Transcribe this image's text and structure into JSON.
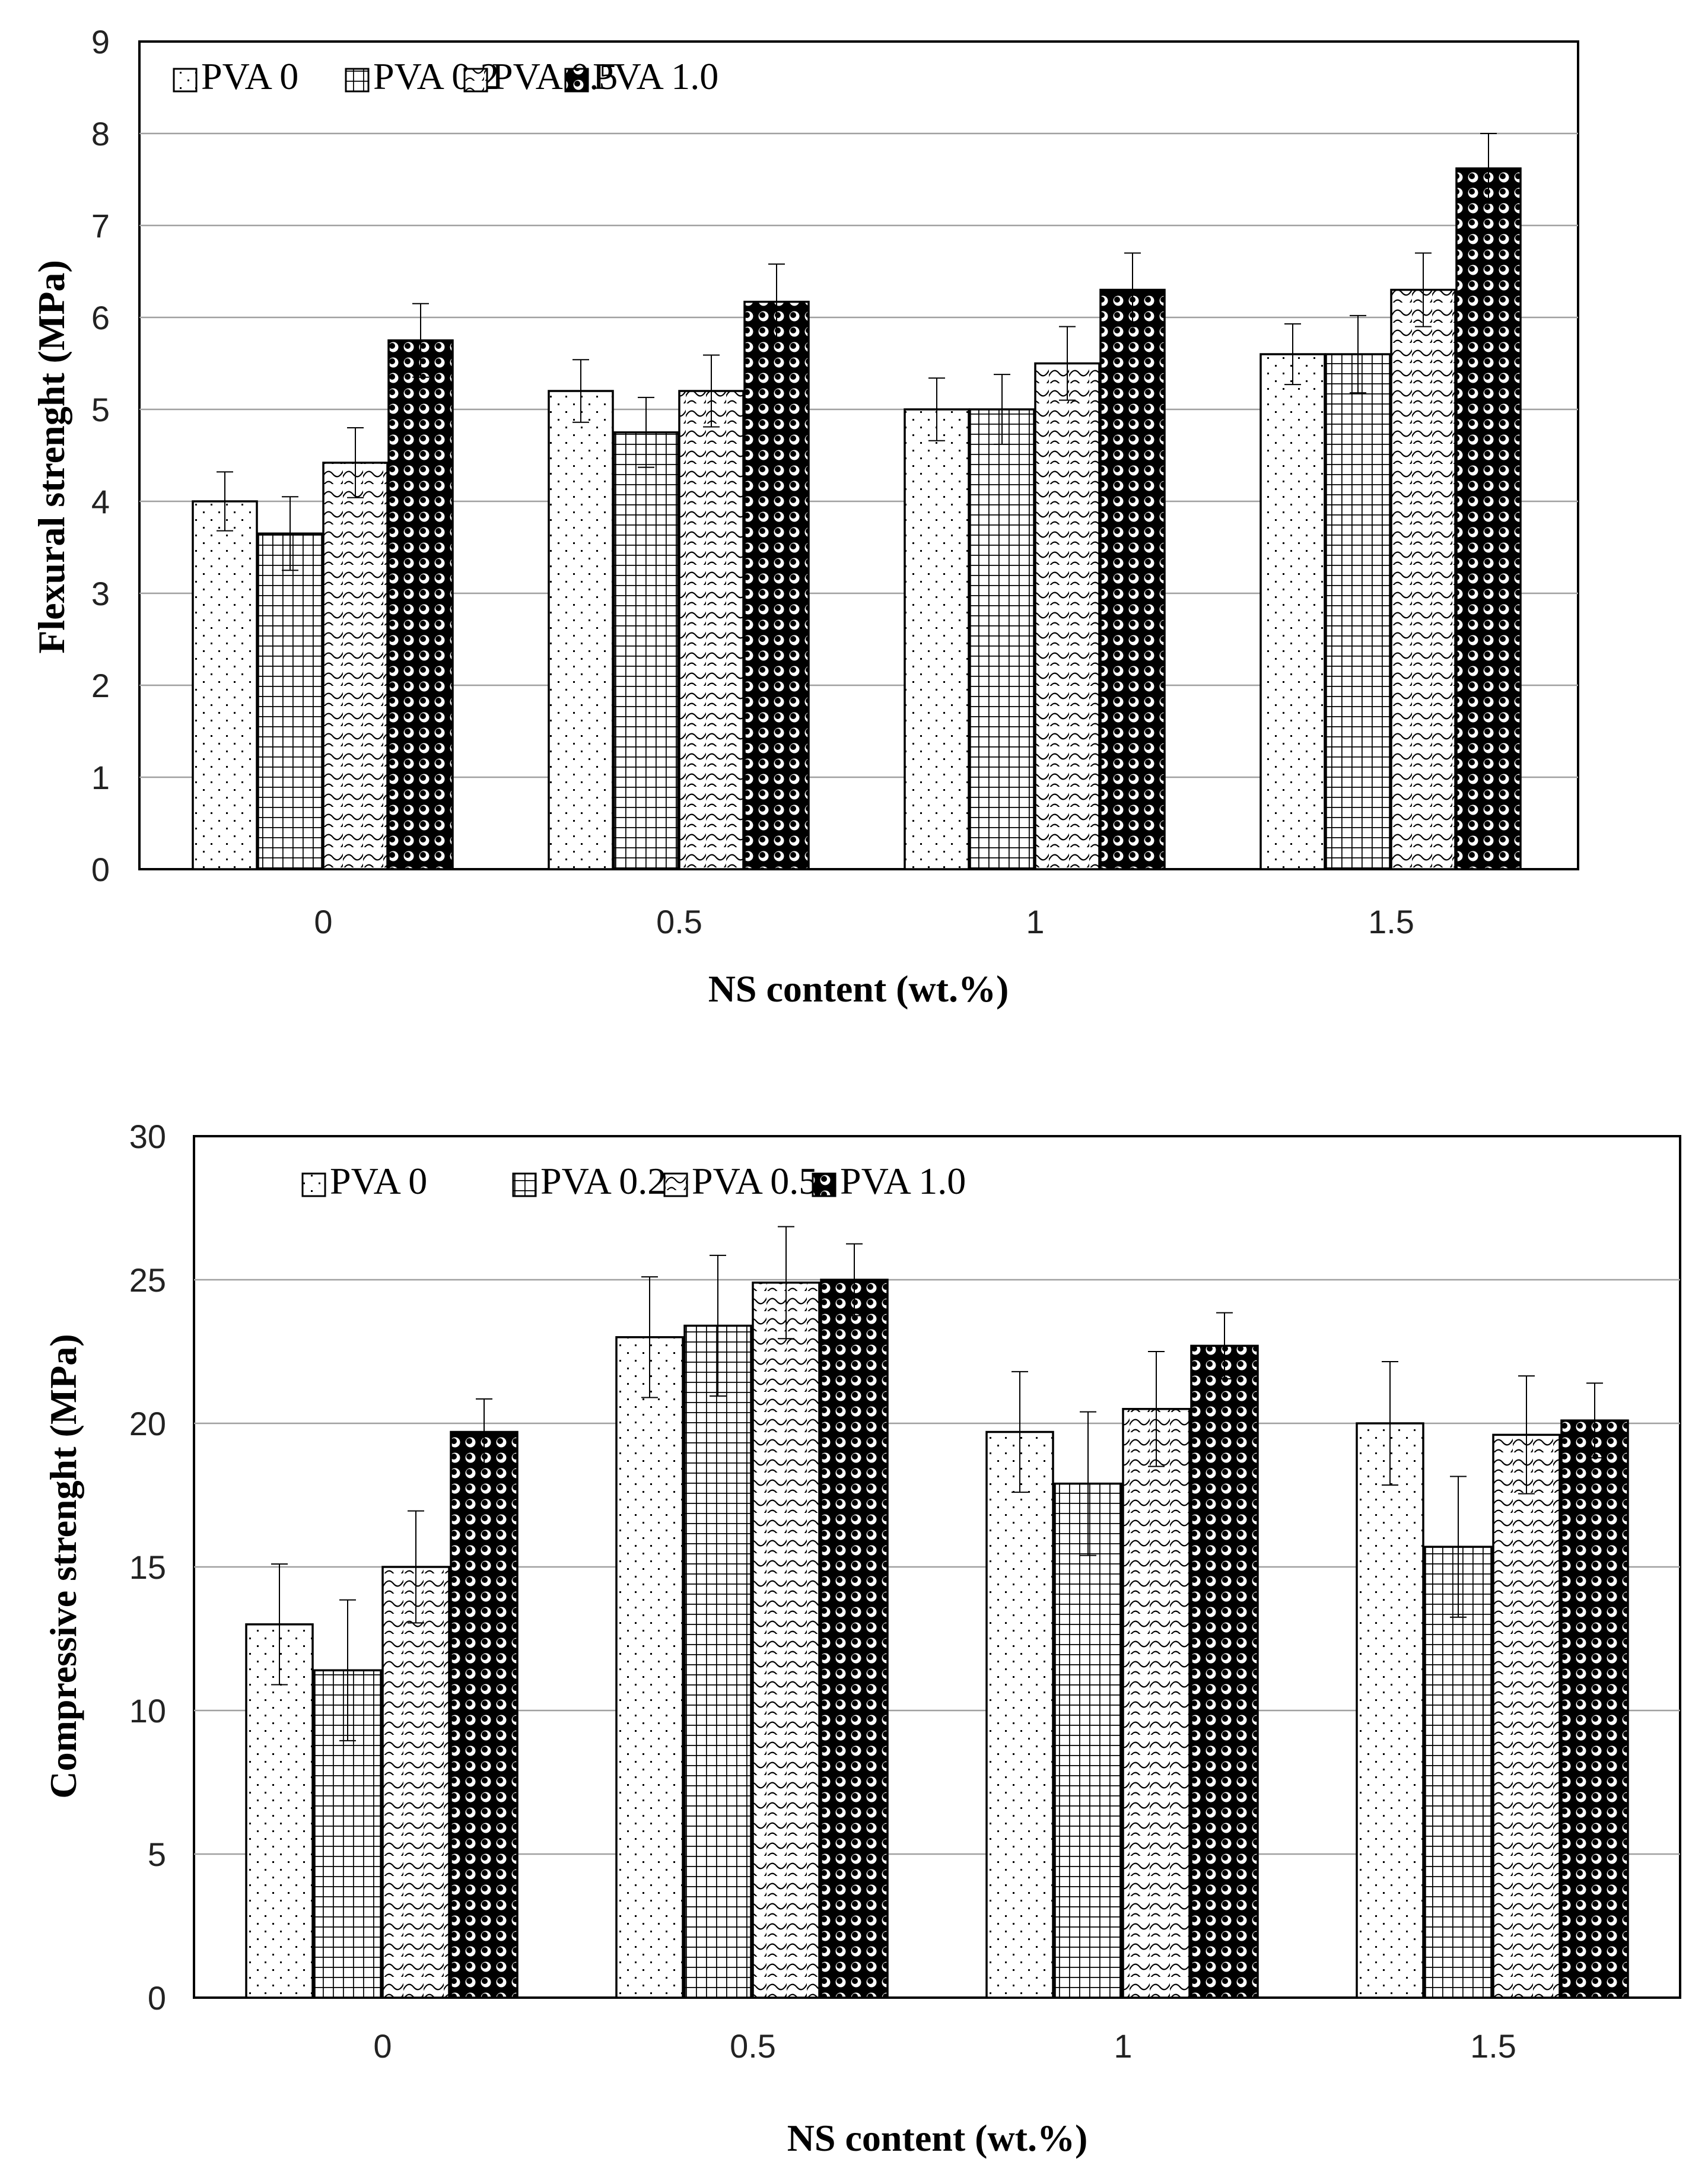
{
  "charts": [
    {
      "type": "bar",
      "title": "",
      "xlabel": "NS content (wt.%)",
      "ylabel": "Flexural strenght (MPa)",
      "categories": [
        "0",
        "0.5",
        "1",
        "1.5"
      ],
      "ylim": [
        0,
        9
      ],
      "yticks": [
        "0",
        "1",
        "2",
        "3",
        "4",
        "5",
        "6",
        "7",
        "8",
        "9"
      ],
      "grid": true,
      "legend_position": "top-left",
      "series": [
        {
          "name": "PVA 0",
          "values": [
            4.0,
            5.2,
            5.0,
            5.6
          ],
          "errors": [
            0.32,
            0.34,
            0.34,
            0.33
          ]
        },
        {
          "name": "PVA 0.2",
          "values": [
            3.65,
            4.75,
            5.0,
            5.6
          ],
          "errors": [
            0.4,
            0.38,
            0.38,
            0.42
          ]
        },
        {
          "name": "PVA 0.5",
          "values": [
            4.42,
            5.2,
            5.5,
            6.3
          ],
          "errors": [
            0.38,
            0.39,
            0.4,
            0.4
          ]
        },
        {
          "name": "PVA 1.0",
          "values": [
            5.75,
            6.17,
            6.3,
            7.62
          ],
          "errors": [
            0.4,
            0.41,
            0.4,
            0.38
          ]
        }
      ]
    },
    {
      "type": "bar",
      "title": "",
      "xlabel": "NS content (wt.%)",
      "ylabel": "Compressive strenght (MPa)",
      "categories": [
        "0",
        "0.5",
        "1",
        "1.5"
      ],
      "ylim": [
        0,
        30
      ],
      "yticks": [
        "0",
        "5",
        "10",
        "15",
        "20",
        "25",
        "30"
      ],
      "grid": true,
      "legend_position": "top-left",
      "series": [
        {
          "name": "PVA 0",
          "values": [
            13.0,
            23.0,
            19.7,
            20.0
          ],
          "errors": [
            2.1,
            2.1,
            2.1,
            2.15
          ]
        },
        {
          "name": "PVA 0.2",
          "values": [
            11.4,
            23.4,
            17.9,
            15.7
          ],
          "errors": [
            2.45,
            2.45,
            2.5,
            2.45
          ]
        },
        {
          "name": "PVA 0.5",
          "values": [
            15.0,
            24.9,
            20.5,
            19.6
          ],
          "errors": [
            1.95,
            1.95,
            2.0,
            2.05
          ]
        },
        {
          "name": "PVA 1.0",
          "values": [
            19.7,
            25.0,
            22.7,
            20.1
          ],
          "errors": [
            1.15,
            1.25,
            1.15,
            1.3
          ]
        }
      ]
    }
  ],
  "chart_data": [
    {
      "type": "bar",
      "title": "",
      "xlabel": "NS content (wt.%)",
      "ylabel": "Flexural strenght (MPa)",
      "categories": [
        "0",
        "0.5",
        "1",
        "1.5"
      ],
      "ylim": [
        0,
        9
      ],
      "grid": true,
      "legend": [
        "PVA 0",
        "PVA 0.2",
        "PVA 0.5",
        "PVA 1.0"
      ],
      "series": [
        {
          "name": "PVA 0",
          "values": [
            4.0,
            5.2,
            5.0,
            5.6
          ]
        },
        {
          "name": "PVA 0.2",
          "values": [
            3.65,
            4.75,
            5.0,
            5.6
          ]
        },
        {
          "name": "PVA 0.5",
          "values": [
            4.42,
            5.2,
            5.5,
            6.3
          ]
        },
        {
          "name": "PVA 1.0",
          "values": [
            5.75,
            6.17,
            6.3,
            7.62
          ]
        }
      ]
    },
    {
      "type": "bar",
      "title": "",
      "xlabel": "NS content (wt.%)",
      "ylabel": "Compressive strenght (MPa)",
      "categories": [
        "0",
        "0.5",
        "1",
        "1.5"
      ],
      "ylim": [
        0,
        30
      ],
      "grid": true,
      "legend": [
        "PVA 0",
        "PVA 0.2",
        "PVA 0.5",
        "PVA 1.0"
      ],
      "series": [
        {
          "name": "PVA 0",
          "values": [
            13.0,
            23.0,
            19.7,
            20.0
          ]
        },
        {
          "name": "PVA 0.2",
          "values": [
            11.4,
            23.4,
            17.9,
            15.7
          ]
        },
        {
          "name": "PVA 0.5",
          "values": [
            15.0,
            24.9,
            20.5,
            19.6
          ]
        },
        {
          "name": "PVA 1.0",
          "values": [
            19.7,
            25.0,
            22.7,
            20.1
          ]
        }
      ]
    }
  ]
}
